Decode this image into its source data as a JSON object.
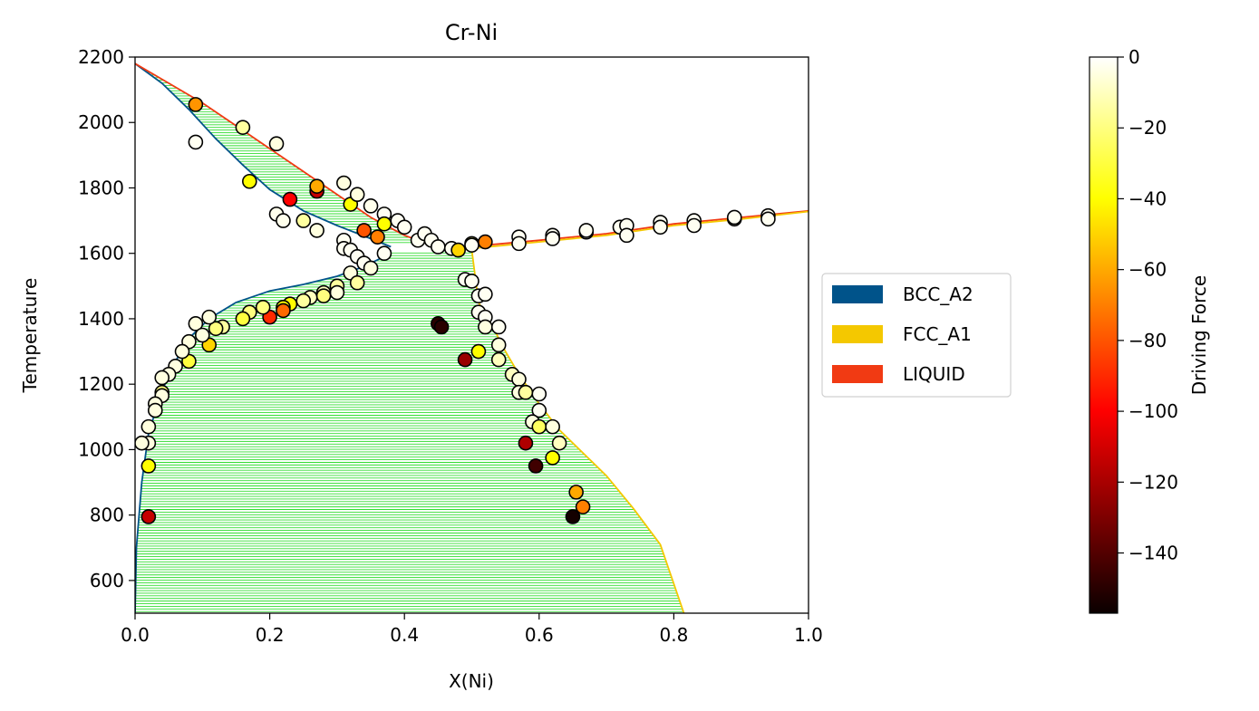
{
  "chart_data": {
    "type": "scatter",
    "title": "Cr-Ni",
    "xlabel": "X(Ni)",
    "ylabel": "Temperature",
    "xlim": [
      0.0,
      1.0
    ],
    "ylim": [
      500,
      2200
    ],
    "x_ticks": [
      "0.0",
      "0.2",
      "0.4",
      "0.6",
      "0.8",
      "1.0"
    ],
    "y_ticks": [
      "600",
      "800",
      "1000",
      "1200",
      "1400",
      "1600",
      "1800",
      "2000",
      "2200"
    ],
    "grid": false,
    "legend": {
      "placement": "right",
      "entries": [
        {
          "label": "BCC_A2",
          "color": "#00538a"
        },
        {
          "label": "FCC_A1",
          "color": "#f4c800"
        },
        {
          "label": "LIQUID",
          "color": "#f13a13"
        }
      ]
    },
    "colorbar": {
      "label": "Driving Force",
      "min": -157,
      "max": 0,
      "ticks": [
        "0",
        "−20",
        "−40",
        "−60",
        "−80",
        "−100",
        "−120",
        "−140"
      ],
      "tick_values": [
        0,
        -20,
        -40,
        -60,
        -80,
        -100,
        -120,
        -140
      ],
      "colormap": "hot"
    },
    "two_phase_fill_color": "#33dd33",
    "phase_boundaries": [
      {
        "phase": "BCC_A2",
        "name": "bcc liquidus-solidus",
        "points": [
          [
            0.0,
            2180
          ],
          [
            0.04,
            2120
          ],
          [
            0.08,
            2040
          ],
          [
            0.12,
            1950
          ],
          [
            0.16,
            1870
          ],
          [
            0.2,
            1795
          ],
          [
            0.25,
            1730
          ],
          [
            0.3,
            1685
          ],
          [
            0.35,
            1645
          ],
          [
            0.38,
            1620
          ]
        ]
      },
      {
        "phase": "BCC_A2",
        "name": "bcc solvus",
        "points": [
          [
            0.0,
            500
          ],
          [
            0.002,
            700
          ],
          [
            0.01,
            900
          ],
          [
            0.02,
            1050
          ],
          [
            0.04,
            1180
          ],
          [
            0.06,
            1270
          ],
          [
            0.08,
            1340
          ],
          [
            0.11,
            1400
          ],
          [
            0.15,
            1450
          ],
          [
            0.2,
            1485
          ],
          [
            0.25,
            1505
          ],
          [
            0.3,
            1530
          ],
          [
            0.34,
            1560
          ],
          [
            0.37,
            1590
          ],
          [
            0.38,
            1610
          ]
        ]
      },
      {
        "phase": "LIQUID",
        "name": "liquidus left",
        "points": [
          [
            0.0,
            2180
          ],
          [
            0.05,
            2120
          ],
          [
            0.1,
            2060
          ],
          [
            0.15,
            1990
          ],
          [
            0.2,
            1920
          ],
          [
            0.25,
            1850
          ],
          [
            0.3,
            1780
          ],
          [
            0.35,
            1710
          ],
          [
            0.4,
            1655
          ],
          [
            0.44,
            1625
          ],
          [
            0.48,
            1615
          ],
          [
            0.52,
            1620
          ]
        ]
      },
      {
        "phase": "LIQUID",
        "name": "liquidus right",
        "points": [
          [
            0.52,
            1625
          ],
          [
            0.6,
            1640
          ],
          [
            0.7,
            1660
          ],
          [
            0.8,
            1690
          ],
          [
            0.9,
            1710
          ],
          [
            1.0,
            1730
          ]
        ]
      },
      {
        "phase": "FCC_A1",
        "name": "fcc solidus",
        "points": [
          [
            0.5,
            1615
          ],
          [
            0.6,
            1635
          ],
          [
            0.7,
            1655
          ],
          [
            0.8,
            1685
          ],
          [
            0.9,
            1705
          ],
          [
            1.0,
            1728
          ]
        ]
      },
      {
        "phase": "FCC_A1",
        "name": "fcc solvus",
        "points": [
          [
            0.5,
            1610
          ],
          [
            0.51,
            1450
          ],
          [
            0.53,
            1380
          ],
          [
            0.55,
            1300
          ],
          [
            0.57,
            1230
          ],
          [
            0.6,
            1140
          ],
          [
            0.63,
            1060
          ],
          [
            0.67,
            980
          ],
          [
            0.7,
            920
          ],
          [
            0.74,
            820
          ],
          [
            0.78,
            710
          ],
          [
            0.815,
            500
          ]
        ]
      }
    ],
    "points": [
      {
        "x": 0.09,
        "y": 2055,
        "v": -65
      },
      {
        "x": 0.09,
        "y": 1940,
        "v": -2
      },
      {
        "x": 0.16,
        "y": 1985,
        "v": -15
      },
      {
        "x": 0.21,
        "y": 1935,
        "v": -5
      },
      {
        "x": 0.17,
        "y": 1820,
        "v": -40
      },
      {
        "x": 0.23,
        "y": 1765,
        "v": -100
      },
      {
        "x": 0.27,
        "y": 1790,
        "v": -115
      },
      {
        "x": 0.27,
        "y": 1805,
        "v": -60
      },
      {
        "x": 0.31,
        "y": 1815,
        "v": -5
      },
      {
        "x": 0.32,
        "y": 1750,
        "v": -40
      },
      {
        "x": 0.33,
        "y": 1780,
        "v": -5
      },
      {
        "x": 0.35,
        "y": 1745,
        "v": -3
      },
      {
        "x": 0.37,
        "y": 1720,
        "v": -2
      },
      {
        "x": 0.37,
        "y": 1690,
        "v": -40
      },
      {
        "x": 0.39,
        "y": 1700,
        "v": -2
      },
      {
        "x": 0.4,
        "y": 1680,
        "v": -2
      },
      {
        "x": 0.21,
        "y": 1720,
        "v": -3
      },
      {
        "x": 0.22,
        "y": 1700,
        "v": -3
      },
      {
        "x": 0.25,
        "y": 1700,
        "v": -15
      },
      {
        "x": 0.27,
        "y": 1670,
        "v": -5
      },
      {
        "x": 0.34,
        "y": 1670,
        "v": -80
      },
      {
        "x": 0.36,
        "y": 1650,
        "v": -70
      },
      {
        "x": 0.31,
        "y": 1640,
        "v": -2
      },
      {
        "x": 0.31,
        "y": 1615,
        "v": -2
      },
      {
        "x": 0.32,
        "y": 1610,
        "v": -2
      },
      {
        "x": 0.42,
        "y": 1640,
        "v": -2
      },
      {
        "x": 0.43,
        "y": 1660,
        "v": -2
      },
      {
        "x": 0.44,
        "y": 1640,
        "v": -2
      },
      {
        "x": 0.45,
        "y": 1620,
        "v": -2
      },
      {
        "x": 0.47,
        "y": 1615,
        "v": -2
      },
      {
        "x": 0.48,
        "y": 1610,
        "v": -50
      },
      {
        "x": 0.5,
        "y": 1630,
        "v": -20
      },
      {
        "x": 0.5,
        "y": 1625,
        "v": -2
      },
      {
        "x": 0.52,
        "y": 1635,
        "v": -70
      },
      {
        "x": 0.57,
        "y": 1650,
        "v": -2
      },
      {
        "x": 0.57,
        "y": 1630,
        "v": -2
      },
      {
        "x": 0.62,
        "y": 1655,
        "v": -2
      },
      {
        "x": 0.62,
        "y": 1645,
        "v": -2
      },
      {
        "x": 0.67,
        "y": 1665,
        "v": -2
      },
      {
        "x": 0.67,
        "y": 1670,
        "v": -2
      },
      {
        "x": 0.72,
        "y": 1680,
        "v": -2
      },
      {
        "x": 0.73,
        "y": 1685,
        "v": -2
      },
      {
        "x": 0.73,
        "y": 1655,
        "v": -2
      },
      {
        "x": 0.78,
        "y": 1695,
        "v": -2
      },
      {
        "x": 0.78,
        "y": 1680,
        "v": -2
      },
      {
        "x": 0.83,
        "y": 1700,
        "v": -2
      },
      {
        "x": 0.83,
        "y": 1685,
        "v": -2
      },
      {
        "x": 0.89,
        "y": 1705,
        "v": -2
      },
      {
        "x": 0.89,
        "y": 1710,
        "v": -2
      },
      {
        "x": 0.94,
        "y": 1715,
        "v": -2
      },
      {
        "x": 0.94,
        "y": 1705,
        "v": -2
      },
      {
        "x": 0.33,
        "y": 1590,
        "v": -2
      },
      {
        "x": 0.34,
        "y": 1570,
        "v": -2
      },
      {
        "x": 0.35,
        "y": 1555,
        "v": -5
      },
      {
        "x": 0.37,
        "y": 1600,
        "v": -2
      },
      {
        "x": 0.32,
        "y": 1540,
        "v": -5
      },
      {
        "x": 0.33,
        "y": 1510,
        "v": -15
      },
      {
        "x": 0.3,
        "y": 1500,
        "v": -15
      },
      {
        "x": 0.3,
        "y": 1480,
        "v": -5
      },
      {
        "x": 0.28,
        "y": 1480,
        "v": -10
      },
      {
        "x": 0.28,
        "y": 1470,
        "v": -20
      },
      {
        "x": 0.26,
        "y": 1465,
        "v": -10
      },
      {
        "x": 0.25,
        "y": 1455,
        "v": -15
      },
      {
        "x": 0.23,
        "y": 1445,
        "v": -40
      },
      {
        "x": 0.22,
        "y": 1435,
        "v": -40
      },
      {
        "x": 0.22,
        "y": 1425,
        "v": -75
      },
      {
        "x": 0.2,
        "y": 1405,
        "v": -90
      },
      {
        "x": 0.19,
        "y": 1435,
        "v": -20
      },
      {
        "x": 0.17,
        "y": 1420,
        "v": -20
      },
      {
        "x": 0.16,
        "y": 1400,
        "v": -30
      },
      {
        "x": 0.13,
        "y": 1375,
        "v": -15
      },
      {
        "x": 0.12,
        "y": 1370,
        "v": -20
      },
      {
        "x": 0.11,
        "y": 1405,
        "v": -5
      },
      {
        "x": 0.11,
        "y": 1320,
        "v": -50
      },
      {
        "x": 0.09,
        "y": 1385,
        "v": -5
      },
      {
        "x": 0.1,
        "y": 1350,
        "v": -5
      },
      {
        "x": 0.08,
        "y": 1330,
        "v": -5
      },
      {
        "x": 0.08,
        "y": 1270,
        "v": -30
      },
      {
        "x": 0.07,
        "y": 1300,
        "v": -5
      },
      {
        "x": 0.06,
        "y": 1255,
        "v": -5
      },
      {
        "x": 0.05,
        "y": 1230,
        "v": -5
      },
      {
        "x": 0.04,
        "y": 1220,
        "v": -5
      },
      {
        "x": 0.04,
        "y": 1175,
        "v": -20
      },
      {
        "x": 0.04,
        "y": 1165,
        "v": -5
      },
      {
        "x": 0.03,
        "y": 1140,
        "v": -5
      },
      {
        "x": 0.03,
        "y": 1120,
        "v": -5
      },
      {
        "x": 0.02,
        "y": 1070,
        "v": -5
      },
      {
        "x": 0.02,
        "y": 1020,
        "v": -5
      },
      {
        "x": 0.01,
        "y": 1020,
        "v": -5
      },
      {
        "x": 0.02,
        "y": 950,
        "v": -40
      },
      {
        "x": 0.02,
        "y": 795,
        "v": -115
      },
      {
        "x": 0.45,
        "y": 1385,
        "v": -150
      },
      {
        "x": 0.455,
        "y": 1375,
        "v": -150
      },
      {
        "x": 0.49,
        "y": 1275,
        "v": -125
      },
      {
        "x": 0.51,
        "y": 1300,
        "v": -40
      },
      {
        "x": 0.49,
        "y": 1520,
        "v": -2
      },
      {
        "x": 0.5,
        "y": 1515,
        "v": -2
      },
      {
        "x": 0.51,
        "y": 1470,
        "v": -2
      },
      {
        "x": 0.52,
        "y": 1475,
        "v": -2
      },
      {
        "x": 0.51,
        "y": 1420,
        "v": -2
      },
      {
        "x": 0.52,
        "y": 1405,
        "v": -2
      },
      {
        "x": 0.52,
        "y": 1375,
        "v": -5
      },
      {
        "x": 0.54,
        "y": 1375,
        "v": -2
      },
      {
        "x": 0.54,
        "y": 1320,
        "v": -5
      },
      {
        "x": 0.54,
        "y": 1275,
        "v": -10
      },
      {
        "x": 0.56,
        "y": 1230,
        "v": -10
      },
      {
        "x": 0.57,
        "y": 1215,
        "v": -5
      },
      {
        "x": 0.57,
        "y": 1175,
        "v": -5
      },
      {
        "x": 0.58,
        "y": 1175,
        "v": -15
      },
      {
        "x": 0.6,
        "y": 1170,
        "v": -2
      },
      {
        "x": 0.6,
        "y": 1120,
        "v": -2
      },
      {
        "x": 0.59,
        "y": 1085,
        "v": -5
      },
      {
        "x": 0.6,
        "y": 1070,
        "v": -25
      },
      {
        "x": 0.62,
        "y": 1070,
        "v": -5
      },
      {
        "x": 0.63,
        "y": 1020,
        "v": -10
      },
      {
        "x": 0.62,
        "y": 975,
        "v": -40
      },
      {
        "x": 0.58,
        "y": 1020,
        "v": -120
      },
      {
        "x": 0.595,
        "y": 950,
        "v": -145
      },
      {
        "x": 0.655,
        "y": 870,
        "v": -60
      },
      {
        "x": 0.665,
        "y": 825,
        "v": -70
      },
      {
        "x": 0.65,
        "y": 795,
        "v": -155
      }
    ]
  }
}
